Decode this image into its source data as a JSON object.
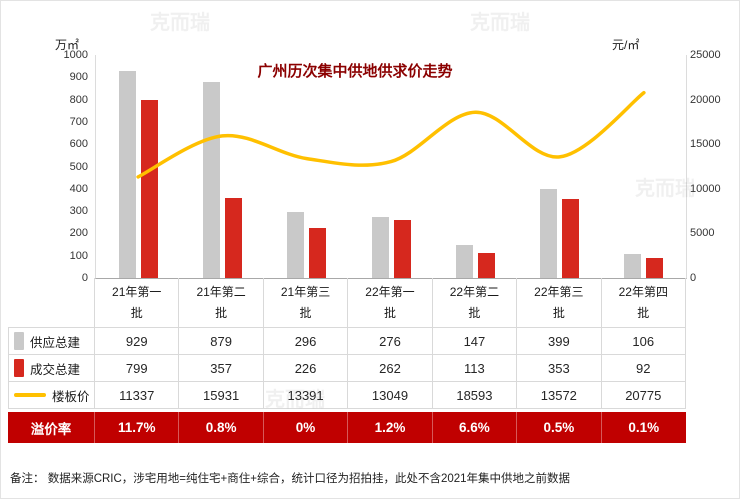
{
  "title": "广州历次集中供地供求价走势",
  "axes": {
    "left": {
      "unit": "万㎡",
      "max": 1000,
      "ticks": [
        1000,
        900,
        800,
        700,
        600,
        500,
        400,
        300,
        200,
        100,
        0
      ]
    },
    "right": {
      "unit": "元/㎡",
      "max": 25000,
      "ticks": [
        25000,
        20000,
        15000,
        10000,
        5000,
        0
      ]
    }
  },
  "chart_data": {
    "type": "bar+line",
    "title": "广州历次集中供地供求价走势",
    "categories": [
      "21年第一批",
      "21年第二批",
      "21年第三批",
      "22年第一批",
      "22年第二批",
      "22年第三批",
      "22年第四批"
    ],
    "series": [
      {
        "name": "供应总建",
        "type": "bar",
        "axis": "left",
        "color": "#c9c9c9",
        "values": [
          929,
          879,
          296,
          276,
          147,
          399,
          106
        ]
      },
      {
        "name": "成交总建",
        "type": "bar",
        "axis": "left",
        "color": "#d6281e",
        "values": [
          799,
          357,
          226,
          262,
          113,
          353,
          92
        ]
      },
      {
        "name": "楼板价",
        "type": "line",
        "axis": "right",
        "color": "#ffc000",
        "values": [
          11337,
          15931,
          13391,
          13049,
          18593,
          13572,
          20775
        ]
      }
    ],
    "premium": {
      "name": "溢价率",
      "color": "#c00000",
      "values": [
        "11.7%",
        "0.8%",
        "0%",
        "1.2%",
        "6.6%",
        "0.5%",
        "0.1%"
      ]
    },
    "ylim_left": [
      0,
      1000
    ],
    "ylim_right": [
      0,
      25000
    ],
    "grid": false,
    "legend_position": "table-left"
  },
  "footer": "备注： 数据来源CRIC，涉宅用地=纯住宅+商住+综合，统计口径为招拍挂，此处不含2021年集中供地之前数据",
  "watermark": "克而瑞"
}
